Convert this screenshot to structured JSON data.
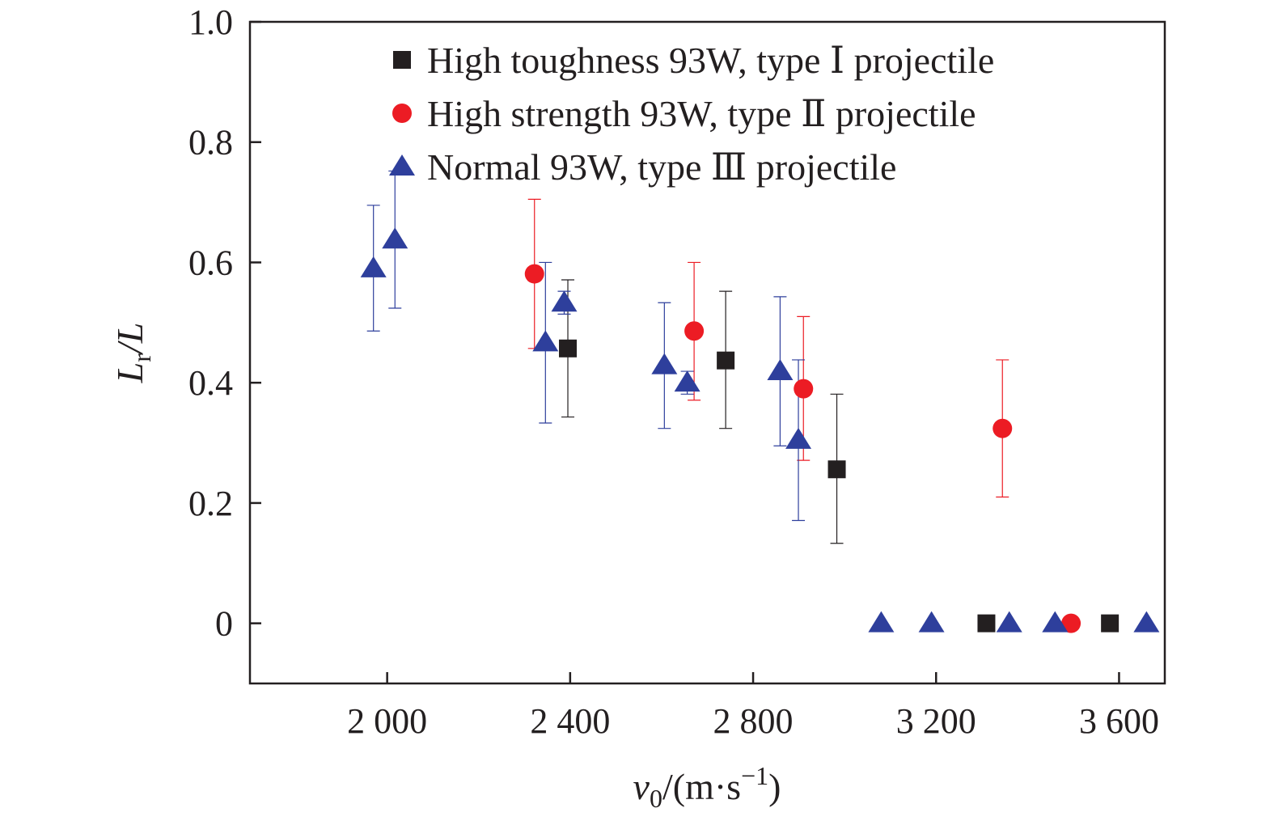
{
  "chart_data": {
    "type": "scatter",
    "title": "",
    "xlabel": {
      "symbol": "v",
      "sub": "0",
      "unit_open": "/(m·s",
      "unit_sup": "−1",
      "unit_close": ")"
    },
    "ylabel": {
      "symbol": "L",
      "sub": "r",
      "rest": "/L"
    },
    "xlim": [
      1700,
      3700
    ],
    "ylim": [
      -0.1,
      1.0
    ],
    "x_ticks": [
      {
        "value": 2000,
        "label": "2 000"
      },
      {
        "value": 2400,
        "label": "2 400"
      },
      {
        "value": 2800,
        "label": "2 800"
      },
      {
        "value": 3200,
        "label": "3 200"
      },
      {
        "value": 3600,
        "label": "3 600"
      }
    ],
    "y_ticks": [
      {
        "value": 0,
        "label": "0"
      },
      {
        "value": 0.2,
        "label": "0.2"
      },
      {
        "value": 0.4,
        "label": "0.4"
      },
      {
        "value": 0.6,
        "label": "0.6"
      },
      {
        "value": 0.8,
        "label": "0.8"
      },
      {
        "value": 1.0,
        "label": "1.0"
      }
    ],
    "grid": false,
    "legend_position": "top-right",
    "series": [
      {
        "name": "High toughness 93W, type Ⅰ projectile",
        "marker": "square",
        "color": "#231f20",
        "points": [
          {
            "x": 2395,
            "y": 0.457,
            "err_low": 0.343,
            "err_high": 0.571
          },
          {
            "x": 2740,
            "y": 0.437,
            "err_low": 0.324,
            "err_high": 0.552
          },
          {
            "x": 2983,
            "y": 0.256,
            "err_low": 0.133,
            "err_high": 0.381
          },
          {
            "x": 3310,
            "y": 0
          },
          {
            "x": 3580,
            "y": 0
          }
        ]
      },
      {
        "name": "High strength 93W, type Ⅱ projectile",
        "marker": "circle",
        "color": "#ec1c24",
        "points": [
          {
            "x": 2322,
            "y": 0.581,
            "err_low": 0.457,
            "err_high": 0.705
          },
          {
            "x": 2671,
            "y": 0.486,
            "err_low": 0.371,
            "err_high": 0.6
          },
          {
            "x": 2910,
            "y": 0.39,
            "err_low": 0.271,
            "err_high": 0.51
          },
          {
            "x": 3345,
            "y": 0.324,
            "err_low": 0.21,
            "err_high": 0.438
          },
          {
            "x": 3495,
            "y": 0
          }
        ]
      },
      {
        "name": "Normal 93W, type Ⅲ projectile",
        "marker": "triangle",
        "color": "#2e3f9c",
        "points": [
          {
            "x": 1970,
            "y": 0.59,
            "err_low": 0.486,
            "err_high": 0.695
          },
          {
            "x": 2017,
            "y": 0.638,
            "err_low": 0.524,
            "err_high": 0.752
          },
          {
            "x": 2346,
            "y": 0.467,
            "err_low": 0.333,
            "err_high": 0.6
          },
          {
            "x": 2387,
            "y": 0.533,
            "err_low": 0.514,
            "err_high": 0.552
          },
          {
            "x": 2606,
            "y": 0.429,
            "err_low": 0.324,
            "err_high": 0.533
          },
          {
            "x": 2656,
            "y": 0.4,
            "err_low": 0.381,
            "err_high": 0.419
          },
          {
            "x": 2859,
            "y": 0.419,
            "err_low": 0.295,
            "err_high": 0.543
          },
          {
            "x": 2899,
            "y": 0.305,
            "err_low": 0.171,
            "err_high": 0.438
          },
          {
            "x": 3080,
            "y": 0
          },
          {
            "x": 3190,
            "y": 0
          },
          {
            "x": 3360,
            "y": 0
          },
          {
            "x": 3460,
            "y": 0
          },
          {
            "x": 3660,
            "y": 0
          }
        ]
      }
    ]
  }
}
